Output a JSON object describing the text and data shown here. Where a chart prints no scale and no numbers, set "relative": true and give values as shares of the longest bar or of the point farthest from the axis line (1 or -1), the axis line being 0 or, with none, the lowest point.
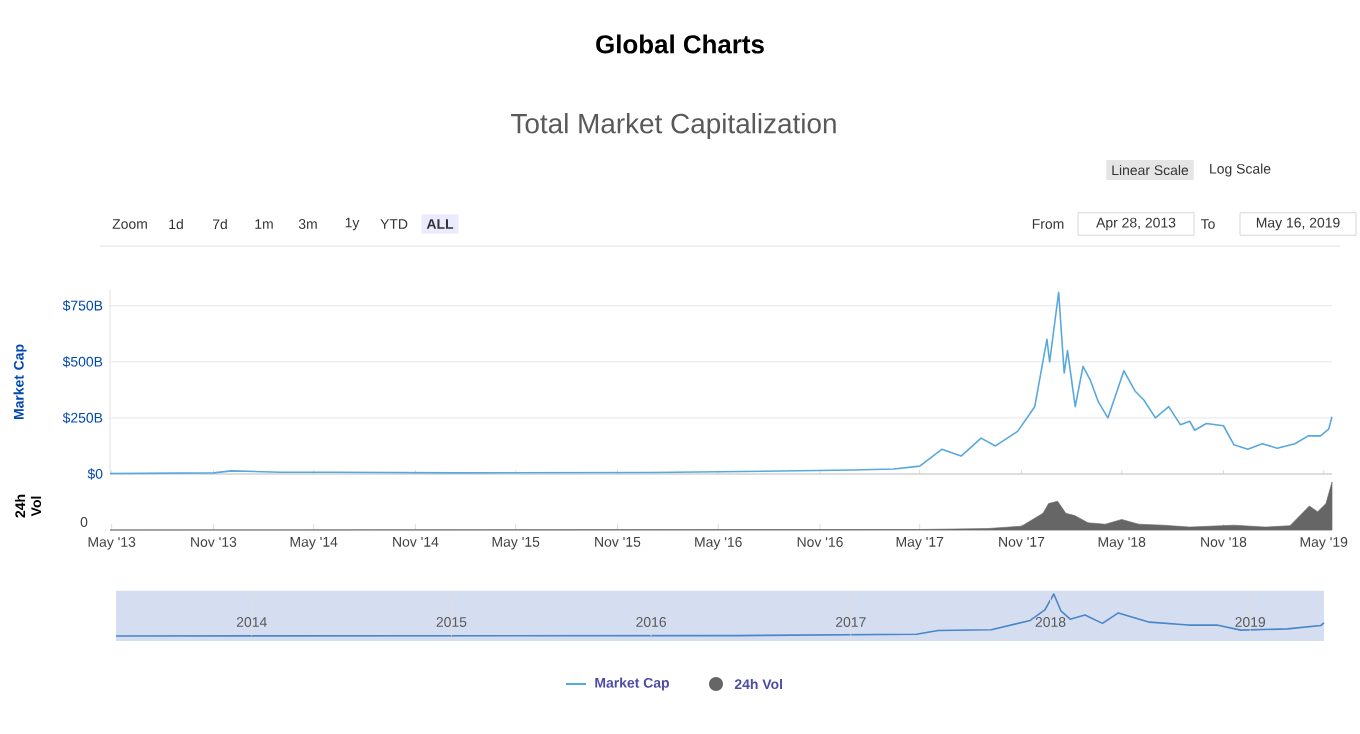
{
  "chart_data": [
    {
      "type": "line",
      "title": "Global Charts",
      "subtitle": "Total Market Capitalization",
      "ylabel": "Market Cap",
      "xlim": [
        "2013-04-28",
        "2019-05-16"
      ],
      "xticks": [
        {
          "value": "2013-05-01",
          "label": null
        },
        {
          "value": "2013-11-01",
          "label": null
        },
        {
          "value": "2014-05-01",
          "label": null
        },
        {
          "value": "2014-11-01",
          "label": null
        },
        {
          "value": "2015-05-01",
          "label": null
        },
        {
          "value": "2015-11-01",
          "label": null
        },
        {
          "value": "2016-05-01",
          "label": null
        },
        {
          "value": "2016-11-01",
          "label": null
        },
        {
          "value": "2017-05-01",
          "label": null
        },
        {
          "value": "2017-11-01",
          "label": null
        },
        {
          "value": "2018-05-01",
          "label": null
        },
        {
          "value": "2018-11-01",
          "label": null
        },
        {
          "value": "2019-05-01",
          "label": null
        }
      ],
      "ylim": [
        0,
        820
      ],
      "yticks": [
        {
          "value": 0,
          "label": "$0"
        },
        {
          "value": 250,
          "label": "$250B"
        },
        {
          "value": 500,
          "label": "$500B"
        },
        {
          "value": 750,
          "label": "$750B"
        }
      ],
      "tick_labels": "y",
      "grid": "y",
      "legend": "bottom",
      "annotations": [
        "Linear Scale",
        "Log Scale",
        "Zoom",
        "1d",
        "7d",
        "1m",
        "3m",
        "1y",
        "YTD",
        "ALL",
        "From",
        "Apr 28, 2013",
        "To",
        "May 16, 2019"
      ],
      "series": [
        {
          "name": "Market Cap",
          "color": "#58a8de",
          "x": [
            "2013-04-28",
            "2013-11-01",
            "2013-12-04",
            "2014-03-01",
            "2014-06-01",
            "2015-01-15",
            "2016-01-01",
            "2016-06-15",
            "2017-01-01",
            "2017-03-15",
            "2017-05-01",
            "2017-06-10",
            "2017-07-15",
            "2017-08-20",
            "2017-09-15",
            "2017-10-25",
            "2017-11-25",
            "2017-12-17",
            "2017-12-22",
            "2018-01-07",
            "2018-01-17",
            "2018-01-23",
            "2018-02-06",
            "2018-02-20",
            "2018-03-05",
            "2018-03-20",
            "2018-04-06",
            "2018-05-05",
            "2018-05-25",
            "2018-06-10",
            "2018-07-01",
            "2018-07-25",
            "2018-08-15",
            "2018-09-01",
            "2018-09-10",
            "2018-10-01",
            "2018-11-01",
            "2018-11-20",
            "2018-12-15",
            "2019-01-10",
            "2019-02-06",
            "2019-03-10",
            "2019-04-03",
            "2019-04-25",
            "2019-05-10",
            "2019-05-16"
          ],
          "values": [
            2,
            5,
            14,
            8,
            8,
            5,
            7,
            11,
            18,
            22,
            35,
            110,
            80,
            160,
            125,
            190,
            300,
            600,
            500,
            810,
            450,
            550,
            300,
            480,
            420,
            320,
            250,
            460,
            370,
            330,
            250,
            300,
            220,
            235,
            195,
            225,
            215,
            130,
            110,
            135,
            115,
            135,
            170,
            170,
            200,
            255
          ]
        }
      ]
    },
    {
      "type": "area",
      "ylabel": "24h Vol",
      "relative": true,
      "annotations": [
        "0"
      ],
      "xlim": [
        "2013-04-28",
        "2019-05-16"
      ],
      "xticks": [
        {
          "value": "2013-05-01",
          "label": "May '13"
        },
        {
          "value": "2013-11-01",
          "label": "Nov '13"
        },
        {
          "value": "2014-05-01",
          "label": "May '14"
        },
        {
          "value": "2014-11-01",
          "label": "Nov '14"
        },
        {
          "value": "2015-05-01",
          "label": "May '15"
        },
        {
          "value": "2015-11-01",
          "label": "Nov '15"
        },
        {
          "value": "2016-05-01",
          "label": "May '16"
        },
        {
          "value": "2016-11-01",
          "label": "Nov '16"
        },
        {
          "value": "2017-05-01",
          "label": "May '17"
        },
        {
          "value": "2017-11-01",
          "label": "Nov '17"
        },
        {
          "value": "2018-05-01",
          "label": "May '18"
        },
        {
          "value": "2018-11-01",
          "label": "Nov '18"
        },
        {
          "value": "2019-05-01",
          "label": "May '19"
        }
      ],
      "series": [
        {
          "name": "24h Vol",
          "color": "#666666",
          "x": [
            "2013-04-28",
            "2017-05-01",
            "2017-09-01",
            "2017-11-01",
            "2017-12-10",
            "2017-12-20",
            "2018-01-05",
            "2018-01-20",
            "2018-02-05",
            "2018-03-01",
            "2018-04-01",
            "2018-05-01",
            "2018-06-01",
            "2018-07-15",
            "2018-09-01",
            "2018-11-20",
            "2019-01-15",
            "2019-03-01",
            "2019-04-05",
            "2019-04-20",
            "2019-05-05",
            "2019-05-16"
          ],
          "values": [
            0,
            0.01,
            0.03,
            0.08,
            0.35,
            0.55,
            0.6,
            0.35,
            0.3,
            0.15,
            0.12,
            0.22,
            0.12,
            0.1,
            0.06,
            0.1,
            0.06,
            0.09,
            0.5,
            0.38,
            0.55,
            1
          ]
        }
      ]
    },
    {
      "type": "line",
      "relative": true,
      "grid": "x",
      "xlim": [
        "2013-04-28",
        "2019-05-16"
      ],
      "xticks": [
        {
          "value": "2014-01-01",
          "label": "2014"
        },
        {
          "value": "2015-01-01",
          "label": "2015"
        },
        {
          "value": "2016-01-01",
          "label": "2016"
        },
        {
          "value": "2017-01-01",
          "label": "2017"
        },
        {
          "value": "2018-01-01",
          "label": "2018"
        },
        {
          "value": "2019-01-01",
          "label": "2019"
        }
      ],
      "bands": [
        {
          "axis": "x",
          "from": "2013-04-28",
          "to": "2019-05-16",
          "color": "#d5ddf0"
        }
      ],
      "series": [
        {
          "color": "#4a86c8",
          "x": [
            "2013-04-28",
            "2016-06-01",
            "2017-05-01",
            "2017-06-10",
            "2017-09-15",
            "2017-11-25",
            "2017-12-22",
            "2018-01-07",
            "2018-01-20",
            "2018-02-06",
            "2018-03-05",
            "2018-04-06",
            "2018-05-05",
            "2018-07-01",
            "2018-09-10",
            "2018-11-01",
            "2018-12-15",
            "2019-03-10",
            "2019-05-10",
            "2019-05-16"
          ],
          "values": [
            0,
            0.01,
            0.04,
            0.13,
            0.15,
            0.37,
            0.62,
            1,
            0.6,
            0.4,
            0.5,
            0.3,
            0.55,
            0.33,
            0.26,
            0.26,
            0.14,
            0.17,
            0.25,
            0.31
          ]
        }
      ]
    }
  ]
}
